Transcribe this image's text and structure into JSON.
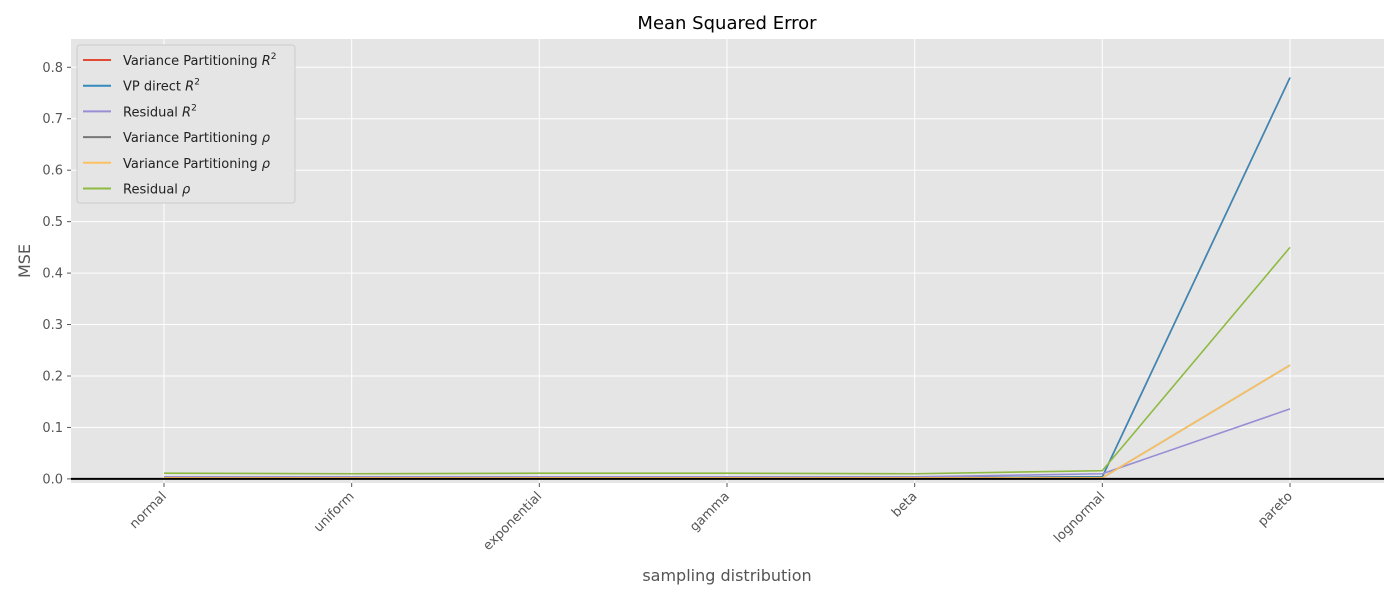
{
  "chart_data": {
    "type": "line",
    "title": "Mean Squared Error",
    "xlabel": "sampling distribution",
    "ylabel": "MSE",
    "categories": [
      "normal",
      "uniform",
      "exponential",
      "gamma",
      "beta",
      "lognormal",
      "pareto"
    ],
    "yticks": [
      "0.0",
      "0.1",
      "0.2",
      "0.3",
      "0.4",
      "0.5",
      "0.6",
      "0.7",
      "0.8"
    ],
    "ylim": [
      -0.008,
      0.855
    ],
    "grid": true,
    "legend_position": "top-left",
    "series": [
      {
        "name": "Variance Partitioning",
        "symbol": "R",
        "sup": "2",
        "color": "#E24A33",
        "values": [
          0.002,
          0.002,
          0.002,
          0.002,
          0.002,
          0.004,
          0.78
        ]
      },
      {
        "name": "VP direct",
        "symbol": "R",
        "sup": "2",
        "color": "#348ABD",
        "values": [
          0.002,
          0.002,
          0.002,
          0.002,
          0.002,
          0.004,
          0.78
        ]
      },
      {
        "name": "Residual",
        "symbol": "R",
        "sup": "2",
        "color": "#988ED5",
        "values": [
          0.004,
          0.004,
          0.004,
          0.004,
          0.004,
          0.01,
          0.136
        ]
      },
      {
        "name": "Variance Partitioning",
        "symbol": "ρ",
        "sup": "",
        "color": "#777777",
        "values": [
          0.002,
          0.002,
          0.002,
          0.002,
          0.002,
          0.002,
          0.221
        ]
      },
      {
        "name": "Variance Partitioning",
        "symbol": "ρ",
        "sup": "",
        "color": "#FBC15E",
        "values": [
          0.002,
          0.002,
          0.002,
          0.002,
          0.002,
          0.002,
          0.221
        ]
      },
      {
        "name": "Residual",
        "symbol": "ρ",
        "sup": "",
        "color": "#8EBA42",
        "values": [
          0.011,
          0.01,
          0.011,
          0.011,
          0.01,
          0.016,
          0.45
        ]
      }
    ]
  }
}
